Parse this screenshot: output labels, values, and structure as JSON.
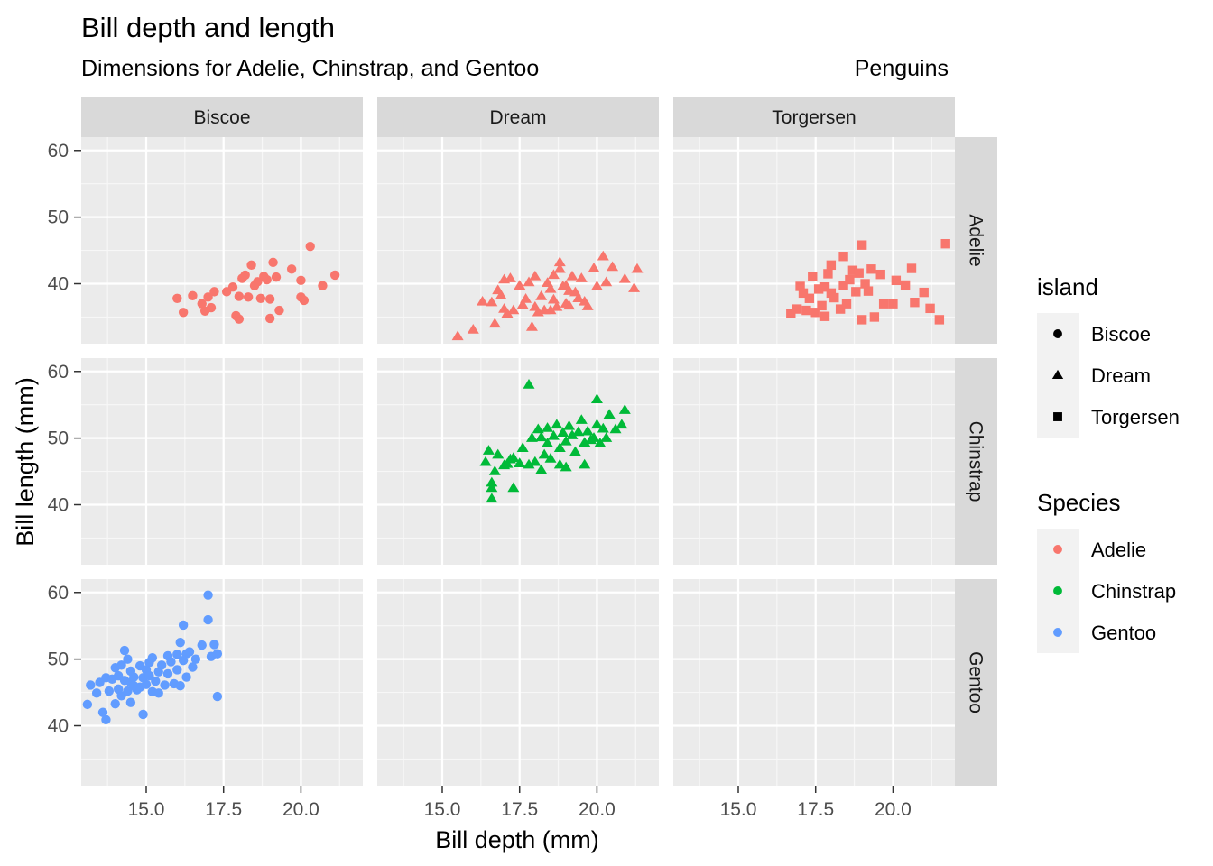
{
  "chart_data": {
    "type": "scatter",
    "title": "Bill depth and length",
    "subtitle": "Dimensions for Adelie, Chinstrap, and Gentoo",
    "caption": "Penguins",
    "xlabel": "Bill depth (mm)",
    "ylabel": "Bill length (mm)",
    "xlim": [
      12.9,
      22.0
    ],
    "ylim": [
      31.0,
      62.0
    ],
    "x_ticks": [
      "15.0",
      "17.5",
      "20.0"
    ],
    "y_ticks": [
      "40",
      "50",
      "60"
    ],
    "facet_cols": [
      "Biscoe",
      "Dream",
      "Torgersen"
    ],
    "facet_rows": [
      "Adelie",
      "Chinstrap",
      "Gentoo"
    ],
    "grid": true,
    "legend_position": "right",
    "legend_island": {
      "title": "island",
      "items": [
        {
          "label": "Biscoe",
          "shape": "circle"
        },
        {
          "label": "Dream",
          "shape": "triangle"
        },
        {
          "label": "Torgersen",
          "shape": "square"
        }
      ]
    },
    "legend_species": {
      "title": "Species",
      "items": [
        {
          "label": "Adelie",
          "color": "#F8766D"
        },
        {
          "label": "Chinstrap",
          "color": "#00BA38"
        },
        {
          "label": "Gentoo",
          "color": "#619CFF"
        }
      ]
    },
    "series": [
      {
        "species": "Adelie",
        "island": "Biscoe",
        "shape": "circle",
        "color": "#F8766D",
        "points": [
          [
            16.0,
            37.8
          ],
          [
            16.2,
            35.7
          ],
          [
            16.5,
            38.2
          ],
          [
            16.8,
            37.0
          ],
          [
            16.9,
            35.9
          ],
          [
            17.0,
            38.0
          ],
          [
            17.1,
            36.4
          ],
          [
            17.2,
            38.8
          ],
          [
            17.6,
            38.8
          ],
          [
            17.8,
            39.5
          ],
          [
            17.9,
            35.2
          ],
          [
            18.0,
            34.7
          ],
          [
            18.0,
            38.1
          ],
          [
            18.1,
            40.8
          ],
          [
            18.2,
            41.3
          ],
          [
            18.3,
            38.0
          ],
          [
            18.4,
            42.8
          ],
          [
            18.5,
            39.7
          ],
          [
            18.6,
            40.3
          ],
          [
            18.7,
            37.8
          ],
          [
            18.8,
            41.1
          ],
          [
            18.9,
            40.6
          ],
          [
            19.0,
            37.7
          ],
          [
            19.0,
            34.8
          ],
          [
            19.1,
            43.2
          ],
          [
            19.2,
            41.0
          ],
          [
            19.3,
            36.0
          ],
          [
            19.7,
            42.2
          ],
          [
            20.0,
            40.5
          ],
          [
            20.0,
            38.0
          ],
          [
            20.1,
            37.5
          ],
          [
            20.3,
            45.6
          ],
          [
            20.7,
            39.7
          ],
          [
            21.1,
            41.3
          ]
        ]
      },
      {
        "species": "Adelie",
        "island": "Dream",
        "shape": "triangle",
        "color": "#F8766D",
        "points": [
          [
            15.5,
            32.1
          ],
          [
            16.0,
            33.1
          ],
          [
            16.3,
            37.3
          ],
          [
            16.6,
            37.2
          ],
          [
            16.7,
            34.0
          ],
          [
            16.8,
            39.0
          ],
          [
            16.9,
            38.2
          ],
          [
            17.0,
            40.6
          ],
          [
            17.0,
            36.2
          ],
          [
            17.1,
            35.5
          ],
          [
            17.2,
            40.8
          ],
          [
            17.3,
            36.0
          ],
          [
            17.5,
            39.7
          ],
          [
            17.6,
            36.8
          ],
          [
            17.7,
            37.7
          ],
          [
            17.8,
            40.2
          ],
          [
            17.9,
            33.5
          ],
          [
            18.0,
            41.1
          ],
          [
            18.0,
            36.5
          ],
          [
            18.1,
            35.7
          ],
          [
            18.2,
            38.1
          ],
          [
            18.3,
            36.0
          ],
          [
            18.4,
            40.1
          ],
          [
            18.5,
            39.2
          ],
          [
            18.5,
            36.0
          ],
          [
            18.6,
            41.3
          ],
          [
            18.6,
            37.6
          ],
          [
            18.7,
            36.5
          ],
          [
            18.8,
            43.2
          ],
          [
            18.8,
            42.2
          ],
          [
            18.9,
            39.6
          ],
          [
            19.0,
            37.0
          ],
          [
            19.0,
            39.7
          ],
          [
            19.1,
            36.7
          ],
          [
            19.1,
            38.9
          ],
          [
            19.2,
            41.1
          ],
          [
            19.3,
            38.7
          ],
          [
            19.4,
            37.8
          ],
          [
            19.5,
            40.8
          ],
          [
            19.6,
            37.3
          ],
          [
            19.7,
            36.6
          ],
          [
            19.9,
            42.3
          ],
          [
            20.0,
            39.6
          ],
          [
            20.2,
            44.1
          ],
          [
            20.3,
            40.2
          ],
          [
            20.5,
            42.5
          ],
          [
            20.9,
            40.7
          ],
          [
            21.2,
            39.3
          ],
          [
            21.3,
            42.2
          ]
        ]
      },
      {
        "species": "Adelie",
        "island": "Torgersen",
        "shape": "square",
        "color": "#F8766D",
        "points": [
          [
            16.7,
            35.5
          ],
          [
            16.9,
            36.2
          ],
          [
            17.0,
            39.6
          ],
          [
            17.1,
            38.6
          ],
          [
            17.2,
            36.0
          ],
          [
            17.3,
            37.8
          ],
          [
            17.4,
            41.1
          ],
          [
            17.5,
            35.7
          ],
          [
            17.6,
            39.2
          ],
          [
            17.7,
            36.7
          ],
          [
            17.8,
            39.5
          ],
          [
            17.8,
            35.1
          ],
          [
            17.9,
            41.5
          ],
          [
            18.0,
            42.8
          ],
          [
            18.0,
            38.6
          ],
          [
            18.1,
            37.9
          ],
          [
            18.3,
            36.2
          ],
          [
            18.4,
            44.1
          ],
          [
            18.4,
            39.7
          ],
          [
            18.5,
            37.0
          ],
          [
            18.6,
            40.6
          ],
          [
            18.7,
            42.0
          ],
          [
            18.8,
            38.8
          ],
          [
            18.9,
            41.6
          ],
          [
            19.0,
            45.8
          ],
          [
            19.0,
            34.6
          ],
          [
            19.1,
            40.0
          ],
          [
            19.2,
            38.9
          ],
          [
            19.3,
            42.2
          ],
          [
            19.4,
            35.0
          ],
          [
            19.6,
            41.4
          ],
          [
            19.7,
            37.0
          ],
          [
            20.0,
            37.0
          ],
          [
            20.1,
            40.5
          ],
          [
            20.4,
            39.8
          ],
          [
            20.6,
            42.3
          ],
          [
            20.7,
            37.2
          ],
          [
            21.0,
            38.7
          ],
          [
            21.2,
            36.3
          ],
          [
            21.5,
            34.6
          ],
          [
            21.7,
            46.0
          ]
        ]
      },
      {
        "species": "Chinstrap",
        "island": "Dream",
        "shape": "triangle",
        "color": "#00BA38",
        "points": [
          [
            16.4,
            46.4
          ],
          [
            16.5,
            48.1
          ],
          [
            16.6,
            43.3
          ],
          [
            16.6,
            40.9
          ],
          [
            16.6,
            42.5
          ],
          [
            16.7,
            45.0
          ],
          [
            16.8,
            47.5
          ],
          [
            17.0,
            45.9
          ],
          [
            17.1,
            46.1
          ],
          [
            17.2,
            46.8
          ],
          [
            17.3,
            47.0
          ],
          [
            17.3,
            42.5
          ],
          [
            17.5,
            46.2
          ],
          [
            17.6,
            48.5
          ],
          [
            17.8,
            46.0
          ],
          [
            17.8,
            58.0
          ],
          [
            17.9,
            50.0
          ],
          [
            18.0,
            46.4
          ],
          [
            18.1,
            51.3
          ],
          [
            18.2,
            45.2
          ],
          [
            18.2,
            50.1
          ],
          [
            18.3,
            47.5
          ],
          [
            18.4,
            51.5
          ],
          [
            18.4,
            49.2
          ],
          [
            18.5,
            46.9
          ],
          [
            18.6,
            50.3
          ],
          [
            18.7,
            52.0
          ],
          [
            18.8,
            48.5
          ],
          [
            18.8,
            46.0
          ],
          [
            18.9,
            50.8
          ],
          [
            19.0,
            49.5
          ],
          [
            19.0,
            45.6
          ],
          [
            19.1,
            51.8
          ],
          [
            19.2,
            50.4
          ],
          [
            19.3,
            47.9
          ],
          [
            19.4,
            50.9
          ],
          [
            19.5,
            52.7
          ],
          [
            19.6,
            49.3
          ],
          [
            19.6,
            46.0
          ],
          [
            19.7,
            51.0
          ],
          [
            19.8,
            49.7
          ],
          [
            19.9,
            50.0
          ],
          [
            20.0,
            52.0
          ],
          [
            20.0,
            55.8
          ],
          [
            20.1,
            49.2
          ],
          [
            20.2,
            51.4
          ],
          [
            20.3,
            50.0
          ],
          [
            20.4,
            53.5
          ],
          [
            20.6,
            51.3
          ],
          [
            20.8,
            52.0
          ],
          [
            20.9,
            54.2
          ]
        ]
      },
      {
        "species": "Gentoo",
        "island": "Biscoe",
        "shape": "circle",
        "color": "#619CFF",
        "points": [
          [
            13.1,
            43.2
          ],
          [
            13.2,
            46.1
          ],
          [
            13.4,
            44.9
          ],
          [
            13.5,
            46.5
          ],
          [
            13.6,
            42.0
          ],
          [
            13.7,
            40.9
          ],
          [
            13.7,
            47.2
          ],
          [
            13.8,
            45.2
          ],
          [
            13.9,
            47.0
          ],
          [
            14.0,
            43.3
          ],
          [
            14.0,
            48.7
          ],
          [
            14.1,
            45.5
          ],
          [
            14.1,
            47.5
          ],
          [
            14.2,
            44.5
          ],
          [
            14.2,
            49.1
          ],
          [
            14.3,
            46.8
          ],
          [
            14.3,
            51.3
          ],
          [
            14.4,
            45.2
          ],
          [
            14.4,
            50.0
          ],
          [
            14.5,
            46.5
          ],
          [
            14.5,
            48.2
          ],
          [
            14.5,
            43.5
          ],
          [
            14.6,
            46.0
          ],
          [
            14.6,
            47.3
          ],
          [
            14.7,
            45.4
          ],
          [
            14.8,
            49.0
          ],
          [
            14.8,
            45.8
          ],
          [
            14.9,
            47.2
          ],
          [
            14.9,
            41.7
          ],
          [
            15.0,
            48.4
          ],
          [
            15.0,
            46.2
          ],
          [
            15.1,
            47.5
          ],
          [
            15.1,
            49.5
          ],
          [
            15.2,
            45.1
          ],
          [
            15.2,
            50.2
          ],
          [
            15.3,
            46.7
          ],
          [
            15.4,
            48.1
          ],
          [
            15.4,
            44.9
          ],
          [
            15.5,
            49.1
          ],
          [
            15.6,
            46.1
          ],
          [
            15.7,
            50.5
          ],
          [
            15.7,
            47.8
          ],
          [
            15.8,
            49.6
          ],
          [
            15.9,
            46.3
          ],
          [
            16.0,
            50.7
          ],
          [
            16.0,
            48.4
          ],
          [
            16.1,
            52.5
          ],
          [
            16.1,
            46.0
          ],
          [
            16.2,
            49.8
          ],
          [
            16.2,
            55.1
          ],
          [
            16.3,
            50.8
          ],
          [
            16.3,
            47.3
          ],
          [
            16.4,
            51.1
          ],
          [
            16.5,
            48.8
          ],
          [
            16.6,
            50.0
          ],
          [
            16.8,
            52.1
          ],
          [
            17.0,
            59.6
          ],
          [
            17.0,
            55.9
          ],
          [
            17.1,
            50.4
          ],
          [
            17.2,
            52.2
          ],
          [
            17.3,
            50.8
          ],
          [
            17.3,
            44.4
          ]
        ]
      }
    ]
  }
}
